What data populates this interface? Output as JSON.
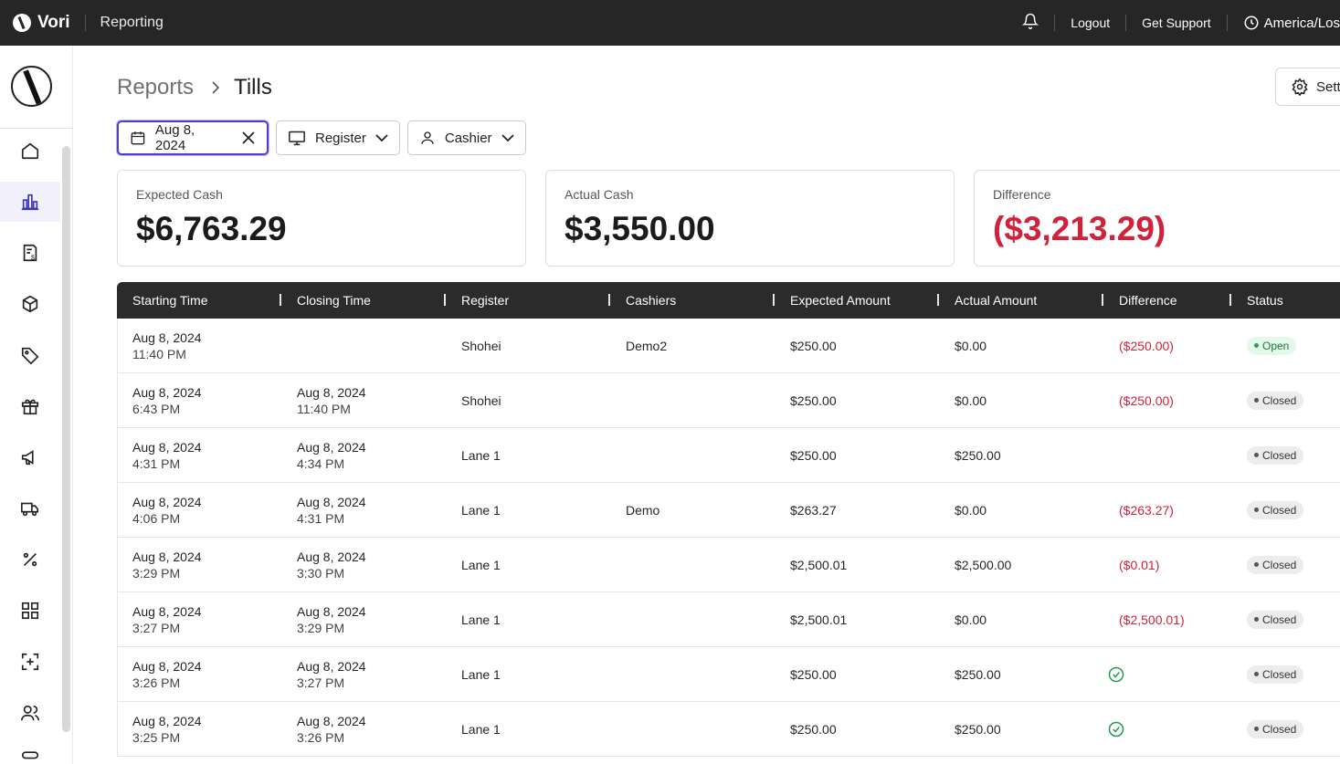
{
  "topbar": {
    "brand": "Vori",
    "app_title": "Reporting",
    "logout": "Logout",
    "support": "Get Support",
    "timezone": "America/Los"
  },
  "sidebar": {
    "items": [
      "home-icon",
      "chart-icon",
      "invoice-icon",
      "box-icon",
      "tag-icon",
      "gift-icon",
      "megaphone-icon",
      "truck-icon",
      "percent-icon",
      "grid-icon",
      "scan-icon",
      "users-icon"
    ],
    "active": "chart-icon"
  },
  "breadcrumb": {
    "parent": "Reports",
    "current": "Tills"
  },
  "settings_label": "Sett",
  "filters": {
    "date": "Aug 8, 2024",
    "register": "Register",
    "cashier": "Cashier"
  },
  "cards": [
    {
      "label": "Expected Cash",
      "value": "$6,763.29"
    },
    {
      "label": "Actual Cash",
      "value": "$3,550.00"
    },
    {
      "label": "Difference",
      "value": "($3,213.29)"
    }
  ],
  "table": {
    "headers": [
      "Starting Time",
      "Closing Time",
      "Register",
      "Cashiers",
      "Expected Amount",
      "Actual Amount",
      "Difference",
      "Status"
    ],
    "rows": [
      {
        "start_date": "Aug 8, 2024",
        "start_time": "11:40 PM",
        "close_date": "",
        "close_time": "",
        "register": "Shohei",
        "cashier": "Demo2",
        "expected": "$250.00",
        "actual": "$0.00",
        "difference": "($250.00)",
        "status": "Open"
      },
      {
        "start_date": "Aug 8, 2024",
        "start_time": "6:43 PM",
        "close_date": "Aug 8, 2024",
        "close_time": "11:40 PM",
        "register": "Shohei",
        "cashier": "",
        "expected": "$250.00",
        "actual": "$0.00",
        "difference": "($250.00)",
        "status": "Closed"
      },
      {
        "start_date": "Aug 8, 2024",
        "start_time": "4:31 PM",
        "close_date": "Aug 8, 2024",
        "close_time": "4:34 PM",
        "register": "Lane 1",
        "cashier": "",
        "expected": "$250.00",
        "actual": "$250.00",
        "difference": "",
        "status": "Closed"
      },
      {
        "start_date": "Aug 8, 2024",
        "start_time": "4:06 PM",
        "close_date": "Aug 8, 2024",
        "close_time": "4:31 PM",
        "register": "Lane 1",
        "cashier": "Demo",
        "expected": "$263.27",
        "actual": "$0.00",
        "difference": "($263.27)",
        "status": "Closed"
      },
      {
        "start_date": "Aug 8, 2024",
        "start_time": "3:29 PM",
        "close_date": "Aug 8, 2024",
        "close_time": "3:30 PM",
        "register": "Lane 1",
        "cashier": "",
        "expected": "$2,500.01",
        "actual": "$2,500.00",
        "difference": "($0.01)",
        "status": "Closed"
      },
      {
        "start_date": "Aug 8, 2024",
        "start_time": "3:27 PM",
        "close_date": "Aug 8, 2024",
        "close_time": "3:29 PM",
        "register": "Lane 1",
        "cashier": "",
        "expected": "$2,500.01",
        "actual": "$0.00",
        "difference": "($2,500.01)",
        "status": "Closed"
      },
      {
        "start_date": "Aug 8, 2024",
        "start_time": "3:26 PM",
        "close_date": "Aug 8, 2024",
        "close_time": "3:27 PM",
        "register": "Lane 1",
        "cashier": "",
        "expected": "$250.00",
        "actual": "$250.00",
        "difference": "",
        "status": "Closed"
      },
      {
        "start_date": "Aug 8, 2024",
        "start_time": "3:25 PM",
        "close_date": "Aug 8, 2024",
        "close_time": "3:26 PM",
        "register": "Lane 1",
        "cashier": "",
        "expected": "$250.00",
        "actual": "$250.00",
        "difference": "",
        "status": "Closed"
      }
    ],
    "balanced_rows": [
      6,
      7
    ]
  },
  "colors": {
    "accent": "#4b3fcf",
    "negative": "#d0223a",
    "topbar": "#262626",
    "open_green": "#22a34d"
  }
}
